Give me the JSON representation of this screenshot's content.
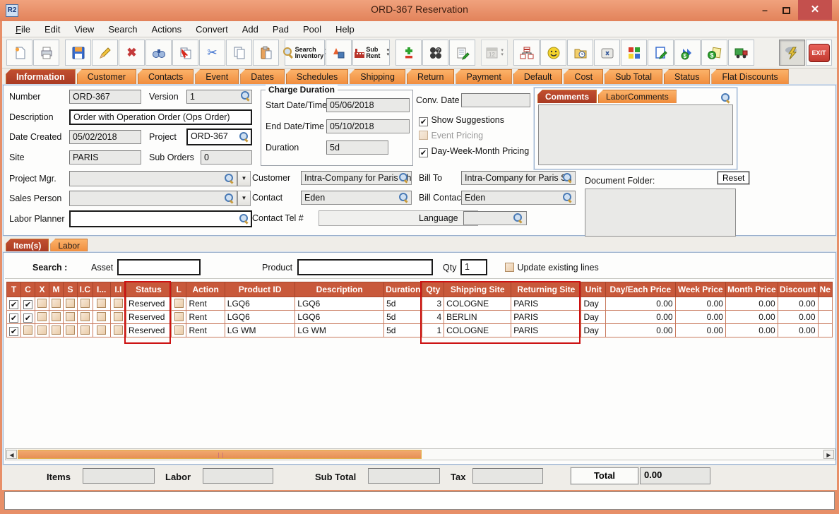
{
  "window": {
    "title": "ORD-367 Reservation",
    "app_badge": "R2"
  },
  "menu": {
    "items": [
      "File",
      "Edit",
      "View",
      "Search",
      "Actions",
      "Convert",
      "Add",
      "Pad",
      "Pool",
      "Help"
    ]
  },
  "toolbar": {
    "search_inventory_label": "Search Inventory",
    "sub_rent_label": "Sub Rent",
    "exit_label": "EXIT"
  },
  "main_tabs": {
    "active": "Information",
    "items": [
      "Information",
      "Customer",
      "Contacts",
      "Event",
      "Dates",
      "Schedules",
      "Shipping",
      "Return",
      "Payment",
      "Default",
      "Cost",
      "Sub Total",
      "Status",
      "Flat Discounts"
    ]
  },
  "info": {
    "number_label": "Number",
    "number_value": "ORD-367",
    "version_label": "Version",
    "version_value": "1",
    "description_label": "Description",
    "description_value": "Order with Operation Order (Ops Order)",
    "date_created_label": "Date Created",
    "date_created_value": "05/02/2018",
    "project_label": "Project",
    "project_value": "ORD-367",
    "site_label": "Site",
    "site_value": "PARIS",
    "sub_orders_label": "Sub Orders",
    "sub_orders_value": "0",
    "project_mgr_label": "Project Mgr.",
    "project_mgr_value": "",
    "sales_person_label": "Sales Person",
    "sales_person_value": "",
    "labor_planner_label": "Labor Planner",
    "labor_planner_value": "",
    "charge_duration": {
      "title": "Charge Duration",
      "start_label": "Start Date/Time",
      "start_value": "05/06/2018",
      "end_label": "End Date/Time",
      "end_value": "05/10/2018",
      "duration_label": "Duration",
      "duration_value": "5d"
    },
    "conv_date_label": "Conv. Date",
    "conv_date_value": "",
    "options": {
      "show_suggestions": {
        "label": "Show Suggestions",
        "checked": true,
        "disabled": false
      },
      "event_pricing": {
        "label": "Event Pricing",
        "checked": false,
        "disabled": true
      },
      "day_week_month": {
        "label": "Day-Week-Month Pricing",
        "checked": true,
        "disabled": false
      }
    },
    "comments": {
      "tabs": [
        {
          "label": "Comments",
          "active": true
        },
        {
          "label": "LaborComments",
          "active": false
        }
      ],
      "text": ""
    },
    "customer_label": "Customer",
    "customer_value": "Intra-Company for Paris Sh",
    "bill_to_label": "Bill To",
    "bill_to_value": "Intra-Company for Paris Sh",
    "contact_label": "Contact",
    "contact_value": "Eden",
    "bill_contact_label": "Bill Contact",
    "bill_contact_value": "Eden",
    "contact_tel_label": "Contact Tel #",
    "contact_tel_value": "",
    "language_label": "Language",
    "language_value": "",
    "document_folder_label": "Document Folder:",
    "reset_label": "Reset",
    "document_folder_value": ""
  },
  "items_section": {
    "tabs": [
      {
        "label": "Item(s)",
        "active": true
      },
      {
        "label": "Labor",
        "active": false
      }
    ],
    "search": {
      "search_label": "Search :",
      "asset_label": "Asset",
      "asset_value": "",
      "product_label": "Product",
      "product_value": "",
      "qty_label": "Qty",
      "qty_value": "1",
      "update_label": "Update existing lines",
      "update_checked": false
    }
  },
  "items_table": {
    "columns": [
      "T",
      "C",
      "X",
      "M",
      "S",
      "I.C",
      "I...",
      "I.I",
      "Status",
      "L",
      "Action",
      "Product ID",
      "Description",
      "Duration",
      "Qty",
      "Shipping Site",
      "Returning Site",
      "Unit",
      "Day/Each Price",
      "Week Price",
      "Month Price",
      "Discount",
      "Ne"
    ],
    "rows": [
      {
        "checks": [
          true,
          true,
          false,
          false,
          false,
          false,
          false,
          false
        ],
        "status": "Reserved",
        "l": false,
        "action": "Rent",
        "product_id": "LGQ6",
        "description": "LGQ6",
        "duration": "5d",
        "qty": "3",
        "shipping_site": "COLOGNE",
        "returning_site": "PARIS",
        "unit": "Day",
        "day_each_price": "0.00",
        "week_price": "0.00",
        "month_price": "0.00",
        "discount": "0.00",
        "ne": ""
      },
      {
        "checks": [
          true,
          true,
          false,
          false,
          false,
          false,
          false,
          false
        ],
        "status": "Reserved",
        "l": false,
        "action": "Rent",
        "product_id": "LGQ6",
        "description": "LGQ6",
        "duration": "5d",
        "qty": "4",
        "shipping_site": "BERLIN",
        "returning_site": "PARIS",
        "unit": "Day",
        "day_each_price": "0.00",
        "week_price": "0.00",
        "month_price": "0.00",
        "discount": "0.00",
        "ne": ""
      },
      {
        "checks": [
          true,
          false,
          false,
          false,
          false,
          false,
          false,
          false
        ],
        "status": "Reserved",
        "l": false,
        "action": "Rent",
        "product_id": "LG WM",
        "description": "LG WM",
        "duration": "5d",
        "qty": "1",
        "shipping_site": "COLOGNE",
        "returning_site": "PARIS",
        "unit": "Day",
        "day_each_price": "0.00",
        "week_price": "0.00",
        "month_price": "0.00",
        "discount": "0.00",
        "ne": ""
      }
    ]
  },
  "totals": {
    "items_label": "Items",
    "items_value": "",
    "labor_label": "Labor",
    "labor_value": "",
    "sub_total_label": "Sub Total",
    "sub_total_value": "",
    "tax_label": "Tax",
    "tax_value": "",
    "total_label": "Total",
    "total_value": "0.00"
  },
  "colors": {
    "titlebar": "#E78F68",
    "tab_active": "#B2402A",
    "tab_inactive": "#F79A4E",
    "table_header": "#C8593B",
    "highlight_red": "#CC1111",
    "scroll_thumb": "#EC9960"
  }
}
